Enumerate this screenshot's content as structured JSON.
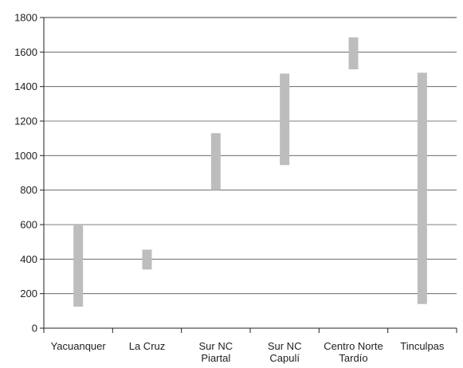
{
  "chart_data": {
    "type": "bar",
    "subtype": "floating-range",
    "title": "",
    "xlabel": "",
    "ylabel": "",
    "ylim": [
      0,
      1800
    ],
    "yticks": [
      0,
      200,
      400,
      600,
      800,
      1000,
      1200,
      1400,
      1600,
      1800
    ],
    "grid": true,
    "categories": [
      [
        "Yacuanquer"
      ],
      [
        "La Cruz"
      ],
      [
        "Sur NC",
        "Piartal"
      ],
      [
        "Sur NC",
        "Capulí"
      ],
      [
        "Centro Norte",
        "Tardío"
      ],
      [
        "Tinculpas"
      ]
    ],
    "ranges": [
      [
        125,
        600
      ],
      [
        340,
        455
      ],
      [
        800,
        1130
      ],
      [
        945,
        1475
      ],
      [
        1500,
        1685
      ],
      [
        140,
        1480
      ]
    ],
    "bar_color": "#bdbdbd",
    "grid_color": "#555555",
    "axis_color": "#222222"
  }
}
